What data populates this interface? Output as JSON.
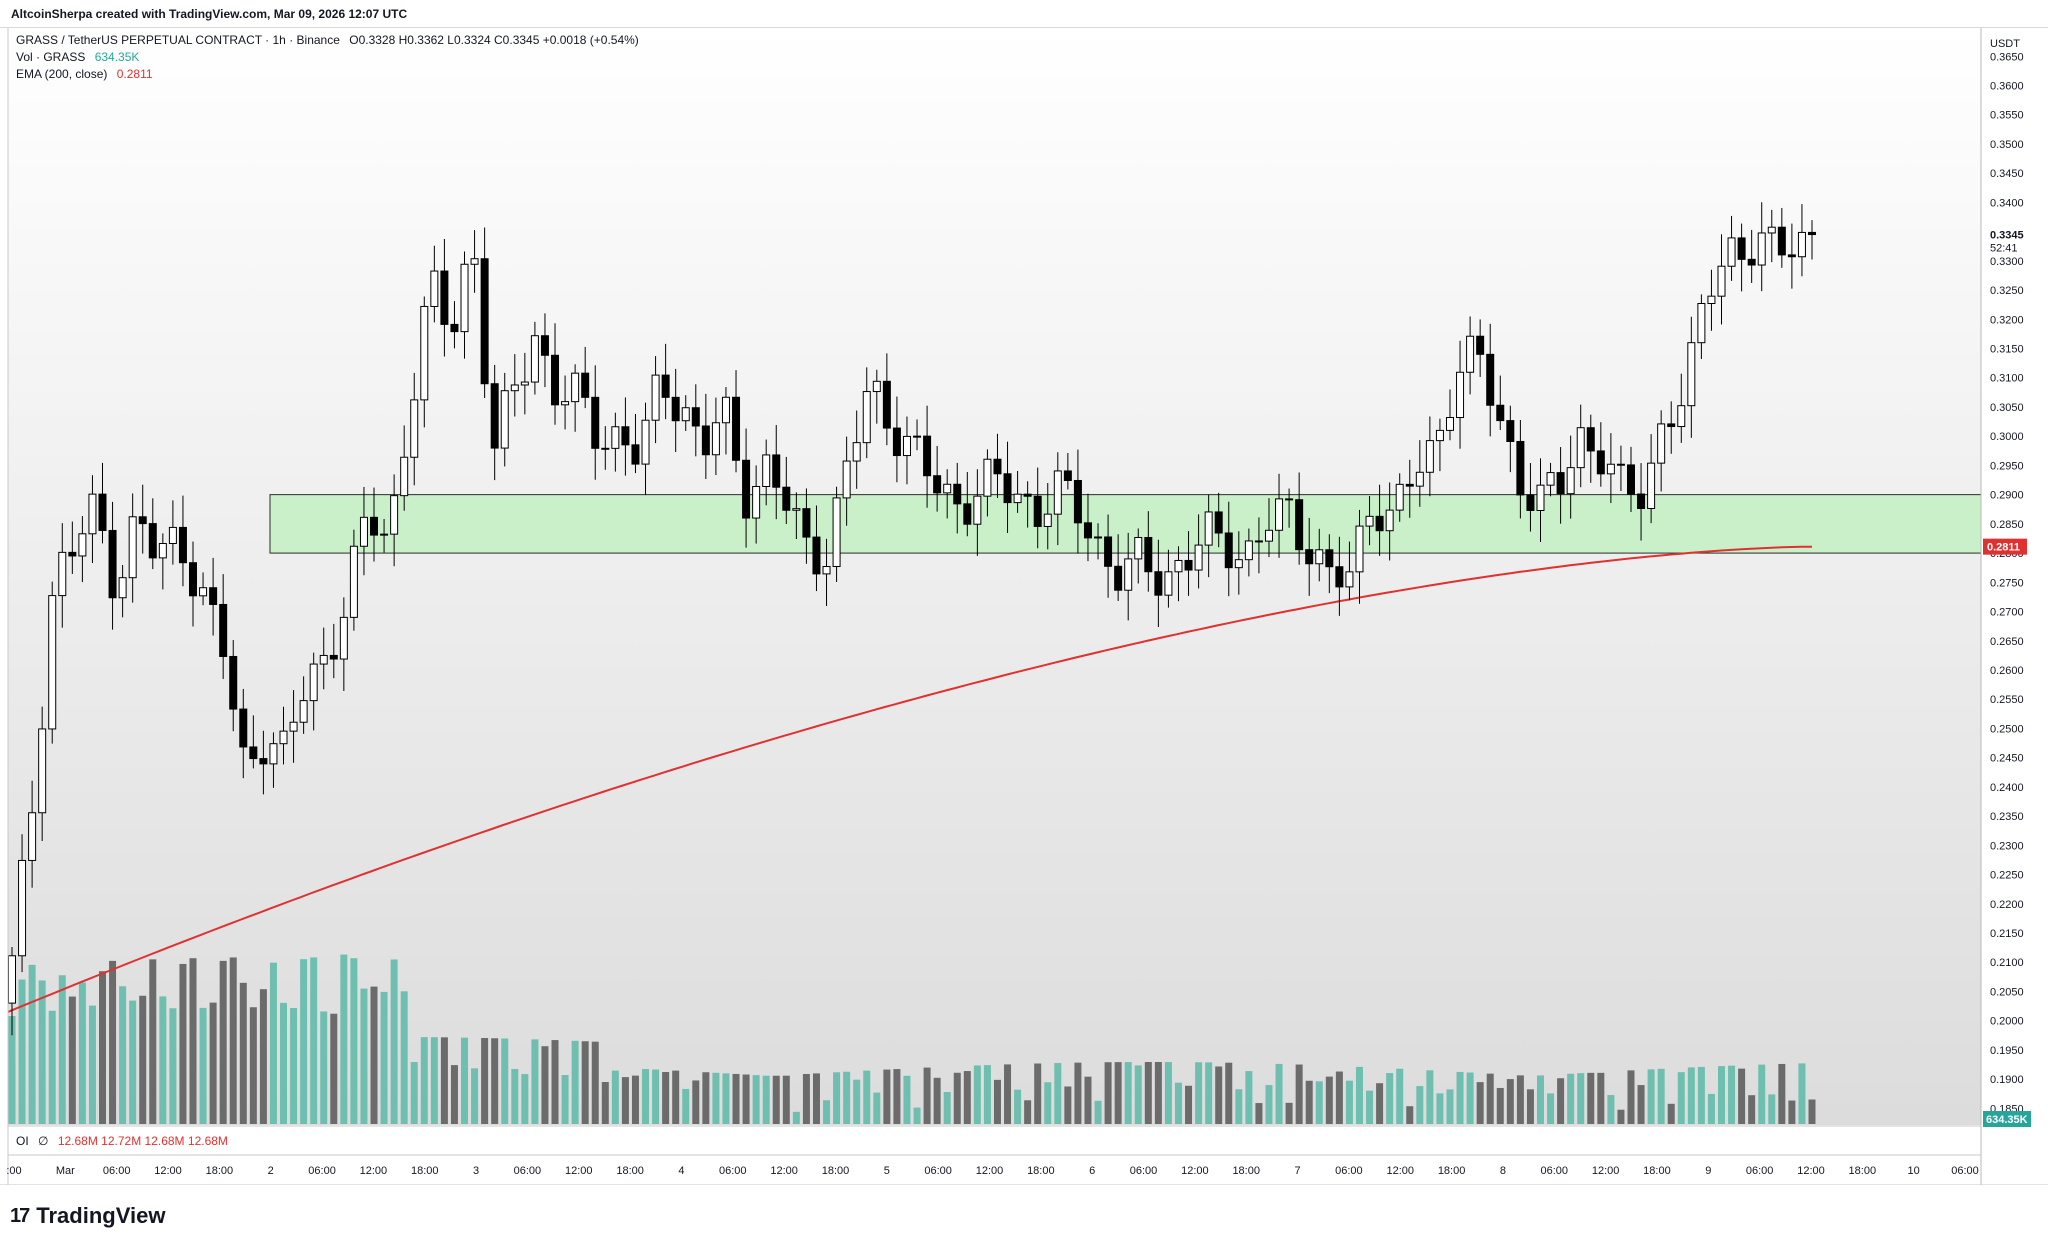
{
  "header": {
    "attribution": "AltcoinSherpa created with TradingView.com, Mar 09, 2026 12:07 UTC"
  },
  "legend": {
    "symbol_line": "GRASS / TetherUS PERPETUAL CONTRACT · 1h · Binance",
    "ohlc": "O0.3328 H0.3362 L0.3324 C0.3345 +0.0018 (+0.54%)",
    "volume_label": "Vol · GRASS",
    "volume_value": "634.35K",
    "ema_label": "EMA (200, close)",
    "ema_value": "0.2811"
  },
  "oi_panel": {
    "label": "OI",
    "symbol": "∅",
    "values": "12.68M  12.72M  12.68M  12.68M"
  },
  "price_axis": {
    "currency": "USDT",
    "last_price": "0.3345",
    "countdown": "52:41",
    "ema_tag": "0.2811",
    "volume_tag": "634.35K",
    "ticks": [
      "0.3650",
      "0.3600",
      "0.3550",
      "0.3500",
      "0.3450",
      "0.3400",
      "0.3350",
      "0.3300",
      "0.3250",
      "0.3200",
      "0.3150",
      "0.3100",
      "0.3050",
      "0.3000",
      "0.2950",
      "0.2900",
      "0.2850",
      "0.2800",
      "0.2750",
      "0.2700",
      "0.2650",
      "0.2600",
      "0.2550",
      "0.2500",
      "0.2450",
      "0.2400",
      "0.2350",
      "0.2300",
      "0.2250",
      "0.2200",
      "0.2150",
      "0.2100",
      "0.2050",
      "0.2000",
      "0.1950",
      "0.1900",
      "0.1850"
    ]
  },
  "time_axis": {
    "labels": [
      ":00",
      "Mar",
      "06:00",
      "12:00",
      "18:00",
      "2",
      "06:00",
      "12:00",
      "18:00",
      "3",
      "06:00",
      "12:00",
      "18:00",
      "4",
      "06:00",
      "12:00",
      "18:00",
      "5",
      "06:00",
      "12:00",
      "18:00",
      "6",
      "06:00",
      "12:00",
      "18:00",
      "7",
      "06:00",
      "12:00",
      "18:00",
      "8",
      "06:00",
      "12:00",
      "18:00",
      "9",
      "06:00",
      "12:00",
      "18:00",
      "10",
      "06:00"
    ]
  },
  "footer": {
    "brand": "TradingView"
  },
  "colors": {
    "up_body": "#ffffff",
    "down_body": "#000000",
    "vol_up": "#6fbfb0",
    "vol_down": "#6b6b6b",
    "ema": "#e03131",
    "zone_fill": "#c9f0c9",
    "background_top": "#ffffff",
    "background_bottom": "#dcdcdc"
  },
  "chart_data": {
    "type": "candlestick",
    "symbol": "GRASS / TetherUS PERPETUAL CONTRACT",
    "interval": "1h",
    "exchange": "Binance",
    "ylim": [
      0.183,
      0.3695
    ],
    "ohlc_closes": [
      0.209,
      0.238,
      0.276,
      0.281,
      0.287,
      0.275,
      0.286,
      0.278,
      0.284,
      0.273,
      0.265,
      0.244,
      0.249,
      0.245,
      0.257,
      0.263,
      0.272,
      0.286,
      0.283,
      0.305,
      0.325,
      0.318,
      0.335,
      0.296,
      0.308,
      0.318,
      0.307,
      0.306,
      0.301,
      0.3,
      0.296,
      0.31,
      0.306,
      0.297,
      0.304,
      0.291,
      0.294,
      0.288,
      0.281,
      0.281,
      0.295,
      0.309,
      0.303,
      0.297,
      0.292,
      0.289,
      0.29,
      0.292,
      0.29,
      0.288,
      0.29,
      0.287,
      0.281,
      0.276,
      0.278,
      0.276,
      0.279,
      0.282,
      0.282,
      0.28,
      0.285,
      0.286,
      0.282,
      0.276,
      0.275,
      0.29,
      0.287,
      0.293,
      0.297,
      0.313,
      0.314,
      0.302,
      0.294,
      0.289,
      0.291,
      0.3,
      0.298,
      0.289,
      0.29,
      0.305,
      0.307,
      0.325,
      0.333,
      0.332,
      0.331,
      0.334,
      0.3345
    ],
    "ema200_start": 0.2015,
    "ema200_end": 0.2811,
    "support_zone": {
      "low": 0.28,
      "high": 0.29
    },
    "volume_axis_note": "volume histogram bottom panel"
  }
}
